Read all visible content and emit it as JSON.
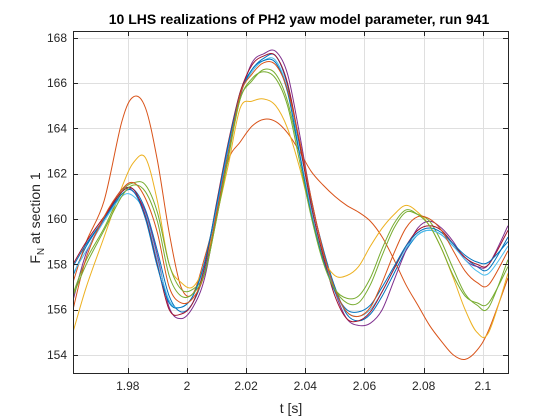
{
  "chart_data": {
    "type": "line",
    "title": "10 LHS realizations of PH2 yaw model parameter, run 941",
    "xlabel": "t [s]",
    "ylabel": {
      "base": "F",
      "subscript": "N",
      "rest": " at section 1"
    },
    "xlim": [
      1.9615,
      2.1085
    ],
    "ylim": [
      153.2,
      168.3
    ],
    "xticks": [
      1.98,
      2.0,
      2.02,
      2.04,
      2.06,
      2.08,
      2.1
    ],
    "xtick_labels": [
      "1.98",
      "2",
      "2.02",
      "2.04",
      "2.06",
      "2.08",
      "2.1"
    ],
    "yticks": [
      154,
      156,
      158,
      160,
      162,
      164,
      166,
      168
    ],
    "ytick_labels": [
      "154",
      "156",
      "158",
      "160",
      "162",
      "164",
      "166",
      "168"
    ],
    "grid": true,
    "x": [
      1.9615,
      1.966,
      1.972,
      1.978,
      1.982,
      1.986,
      1.99,
      1.994,
      1.998,
      2.002,
      2.006,
      2.01,
      2.014,
      2.018,
      2.022,
      2.026,
      2.03,
      2.034,
      2.038,
      2.042,
      2.046,
      2.05,
      2.054,
      2.058,
      2.062,
      2.066,
      2.07,
      2.074,
      2.078,
      2.082,
      2.086,
      2.09,
      2.094,
      2.098,
      2.102,
      2.1085
    ],
    "series": [
      {
        "color": "#0072BD",
        "values": [
          157.5,
          158.8,
          160.0,
          161.2,
          161.3,
          160.4,
          158.6,
          156.6,
          155.9,
          156.3,
          157.7,
          160.4,
          163.2,
          165.6,
          166.6,
          167.1,
          167.2,
          165.9,
          163.3,
          160.8,
          158.7,
          157.0,
          155.8,
          155.5,
          155.8,
          156.6,
          157.6,
          158.6,
          159.3,
          159.5,
          159.3,
          158.8,
          158.3,
          157.9,
          157.8,
          159.2
        ]
      },
      {
        "color": "#D95319",
        "values": [
          157.2,
          159.0,
          160.8,
          164.3,
          165.4,
          164.9,
          162.6,
          159.4,
          157.0,
          156.7,
          158.3,
          160.3,
          162.6,
          163.4,
          164.1,
          164.4,
          164.3,
          163.8,
          163.0,
          162.1,
          161.5,
          161.0,
          160.6,
          160.3,
          159.9,
          159.2,
          158.2,
          157.1,
          156.2,
          155.3,
          154.6,
          154.0,
          153.8,
          154.2,
          155.1,
          157.4
        ]
      },
      {
        "color": "#EDB120",
        "values": [
          155.0,
          157.0,
          159.2,
          161.4,
          162.5,
          162.7,
          160.8,
          158.0,
          157.2,
          157.0,
          158.0,
          160.1,
          162.4,
          164.9,
          165.2,
          165.3,
          165.0,
          164.0,
          162.3,
          160.2,
          158.3,
          157.5,
          157.5,
          157.9,
          158.8,
          159.6,
          160.2,
          160.6,
          160.3,
          159.7,
          158.7,
          157.4,
          156.0,
          155.0,
          155.0,
          157.6
        ]
      },
      {
        "color": "#7E2F8E",
        "values": [
          156.4,
          158.5,
          160.0,
          161.3,
          161.2,
          160.3,
          158.4,
          156.1,
          155.6,
          156.1,
          157.4,
          160.2,
          163.1,
          165.4,
          166.9,
          167.3,
          167.4,
          166.4,
          163.8,
          160.9,
          158.6,
          156.8,
          155.6,
          155.3,
          155.4,
          156.0,
          157.3,
          158.6,
          159.6,
          159.9,
          159.6,
          159.0,
          158.2,
          157.9,
          158.0,
          159.7
        ]
      },
      {
        "color": "#77AC30",
        "values": [
          156.7,
          158.2,
          159.6,
          161.2,
          161.6,
          161.5,
          160.3,
          158.0,
          156.9,
          156.9,
          157.6,
          160.0,
          162.7,
          165.3,
          166.1,
          166.6,
          166.4,
          165.2,
          162.9,
          160.4,
          158.2,
          156.9,
          156.3,
          156.3,
          157.1,
          158.4,
          159.6,
          160.3,
          160.2,
          159.9,
          159.0,
          157.8,
          156.7,
          156.2,
          156.1,
          158.2
        ]
      },
      {
        "color": "#4DBEEE",
        "values": [
          157.6,
          158.6,
          159.9,
          161.0,
          161.0,
          160.2,
          158.2,
          156.4,
          156.1,
          156.6,
          158.0,
          160.5,
          163.2,
          165.5,
          166.5,
          167.0,
          167.0,
          165.7,
          163.0,
          160.4,
          158.4,
          156.8,
          155.9,
          155.7,
          156.0,
          156.8,
          157.8,
          158.7,
          159.3,
          159.5,
          159.3,
          158.8,
          158.2,
          157.7,
          157.6,
          158.8
        ]
      },
      {
        "color": "#A2142F",
        "values": [
          158.0,
          159.0,
          160.1,
          161.2,
          161.3,
          160.1,
          158.0,
          156.0,
          155.8,
          156.3,
          157.9,
          160.7,
          163.4,
          165.6,
          166.8,
          167.2,
          167.2,
          166.0,
          163.4,
          160.6,
          158.4,
          156.6,
          155.6,
          155.5,
          155.9,
          156.8,
          157.8,
          158.8,
          159.5,
          159.7,
          159.5,
          158.9,
          158.3,
          158.0,
          158.0,
          159.5
        ]
      },
      {
        "color": "#0072BD",
        "values": [
          157.9,
          158.9,
          160.0,
          161.1,
          161.2,
          160.0,
          157.9,
          156.3,
          156.1,
          156.6,
          158.1,
          160.6,
          163.3,
          165.5,
          166.6,
          167.0,
          166.9,
          165.6,
          162.9,
          160.2,
          158.2,
          156.8,
          156.0,
          155.9,
          156.2,
          157.0,
          157.9,
          158.8,
          159.4,
          159.6,
          159.4,
          158.9,
          158.4,
          158.1,
          158.1,
          159.0
        ]
      },
      {
        "color": "#D95319",
        "values": [
          156.0,
          158.3,
          160.1,
          161.3,
          161.6,
          160.9,
          159.4,
          157.0,
          156.3,
          156.5,
          157.6,
          160.2,
          162.9,
          165.5,
          166.4,
          166.9,
          166.8,
          165.7,
          163.5,
          160.9,
          158.6,
          156.9,
          155.9,
          155.7,
          156.1,
          157.2,
          158.5,
          159.6,
          160.1,
          160.0,
          159.5,
          158.6,
          157.7,
          157.2,
          157.1,
          158.6
        ]
      },
      {
        "color": "#77AC30",
        "values": [
          156.6,
          158.0,
          159.5,
          161.0,
          161.5,
          161.2,
          159.9,
          157.5,
          156.6,
          156.7,
          157.6,
          160.0,
          162.8,
          165.3,
          166.2,
          166.5,
          166.2,
          165.0,
          162.6,
          160.1,
          158.1,
          156.9,
          156.5,
          156.6,
          157.4,
          158.7,
          159.8,
          160.4,
          160.2,
          159.7,
          158.7,
          157.5,
          156.6,
          156.3,
          156.3,
          157.9
        ]
      }
    ]
  }
}
